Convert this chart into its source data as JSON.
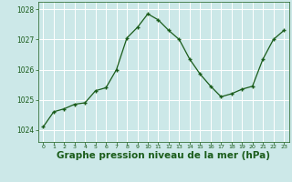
{
  "x": [
    0,
    1,
    2,
    3,
    4,
    5,
    6,
    7,
    8,
    9,
    10,
    11,
    12,
    13,
    14,
    15,
    16,
    17,
    18,
    19,
    20,
    21,
    22,
    23
  ],
  "y": [
    1024.1,
    1024.6,
    1024.7,
    1024.85,
    1024.9,
    1025.3,
    1025.4,
    1026.0,
    1027.05,
    1027.4,
    1027.85,
    1027.65,
    1027.3,
    1027.0,
    1026.35,
    1025.85,
    1025.45,
    1025.1,
    1025.2,
    1025.35,
    1025.45,
    1026.35,
    1027.0,
    1027.3
  ],
  "line_color": "#1a5c1a",
  "marker_color": "#1a5c1a",
  "bg_color": "#cce8e8",
  "grid_color": "#ffffff",
  "xlabel": "Graphe pression niveau de la mer (hPa)",
  "xlabel_fontsize": 7.5,
  "tick_label_color": "#1a5c1a",
  "ylim": [
    1023.6,
    1028.25
  ],
  "yticks": [
    1024,
    1025,
    1026,
    1027,
    1028
  ],
  "xlim": [
    -0.5,
    23.5
  ],
  "xticks": [
    0,
    1,
    2,
    3,
    4,
    5,
    6,
    7,
    8,
    9,
    10,
    11,
    12,
    13,
    14,
    15,
    16,
    17,
    18,
    19,
    20,
    21,
    22,
    23
  ]
}
